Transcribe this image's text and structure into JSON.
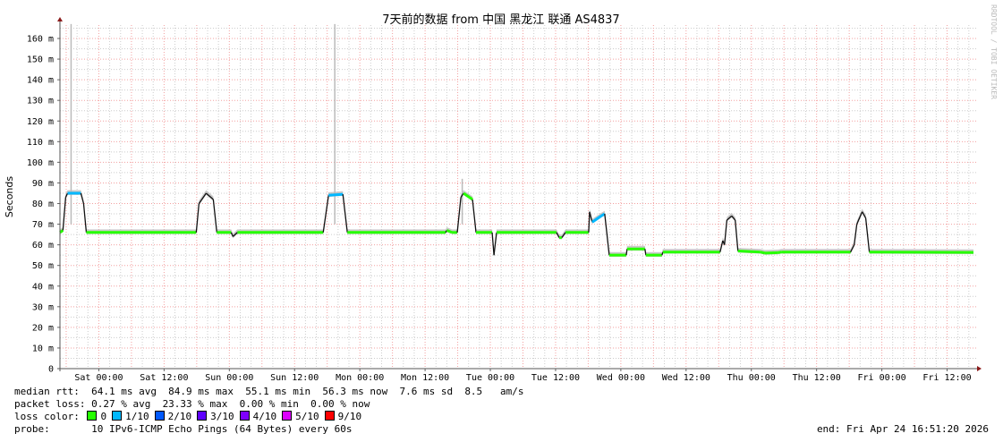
{
  "chart_data": {
    "type": "line",
    "title": "7天前的数据 from 中国 黑龙江 联通 AS4837",
    "ylabel": "Seconds",
    "watermark": "RRDTOOL / TOBI OETIKER",
    "ylim": [
      0,
      167
    ],
    "yticks": [
      {
        "v": 0,
        "label": "0"
      },
      {
        "v": 10,
        "label": "10 m"
      },
      {
        "v": 20,
        "label": "20 m"
      },
      {
        "v": 30,
        "label": "30 m"
      },
      {
        "v": 40,
        "label": "40 m"
      },
      {
        "v": 50,
        "label": "50 m"
      },
      {
        "v": 60,
        "label": "60 m"
      },
      {
        "v": 70,
        "label": "70 m"
      },
      {
        "v": 80,
        "label": "80 m"
      },
      {
        "v": 90,
        "label": "90 m"
      },
      {
        "v": 100,
        "label": "100 m"
      },
      {
        "v": 110,
        "label": "110 m"
      },
      {
        "v": 120,
        "label": "120 m"
      },
      {
        "v": 130,
        "label": "130 m"
      },
      {
        "v": 140,
        "label": "140 m"
      },
      {
        "v": 150,
        "label": "150 m"
      },
      {
        "v": 160,
        "label": "160 m"
      }
    ],
    "xlim": [
      "2026-04-17 16:51",
      "2026-04-24 16:51"
    ],
    "xticks": [
      {
        "t": "2026-04-18 00:00",
        "label": "Sat 00:00"
      },
      {
        "t": "2026-04-18 12:00",
        "label": "Sat 12:00"
      },
      {
        "t": "2026-04-19 00:00",
        "label": "Sun 00:00"
      },
      {
        "t": "2026-04-19 12:00",
        "label": "Sun 12:00"
      },
      {
        "t": "2026-04-20 00:00",
        "label": "Mon 00:00"
      },
      {
        "t": "2026-04-20 12:00",
        "label": "Mon 12:00"
      },
      {
        "t": "2026-04-21 00:00",
        "label": "Tue 00:00"
      },
      {
        "t": "2026-04-21 12:00",
        "label": "Tue 12:00"
      },
      {
        "t": "2026-04-22 00:00",
        "label": "Wed 00:00"
      },
      {
        "t": "2026-04-22 12:00",
        "label": "Wed 12:00"
      },
      {
        "t": "2026-04-23 00:00",
        "label": "Thu 00:00"
      },
      {
        "t": "2026-04-23 12:00",
        "label": "Thu 12:00"
      },
      {
        "t": "2026-04-24 00:00",
        "label": "Fri 00:00"
      },
      {
        "t": "2026-04-24 12:00",
        "label": "Fri 12:00"
      }
    ],
    "grid": true,
    "series_median_ms": [
      [
        "2026-04-17 16:51",
        66,
        0
      ],
      [
        "2026-04-17 17:24",
        67,
        0
      ],
      [
        "2026-04-17 17:54",
        83,
        0
      ],
      [
        "2026-04-17 18:15",
        85,
        1
      ],
      [
        "2026-04-17 20:42",
        85,
        0
      ],
      [
        "2026-04-17 21:12",
        80,
        0
      ],
      [
        "2026-04-17 21:42",
        66,
        0
      ],
      [
        "2026-04-18 17:55",
        66,
        0
      ],
      [
        "2026-04-18 18:25",
        80,
        0
      ],
      [
        "2026-04-18 19:44",
        85,
        1
      ],
      [
        "2026-04-18 21:03",
        82,
        0
      ],
      [
        "2026-04-18 21:42",
        66,
        0
      ],
      [
        "2026-04-19 00:20",
        66,
        0
      ],
      [
        "2026-04-19 00:40",
        64,
        0
      ],
      [
        "2026-04-19 01:29",
        66,
        0
      ],
      [
        "2026-04-19 17:16",
        66,
        0
      ],
      [
        "2026-04-19 18:15",
        84,
        1
      ],
      [
        "2026-04-19 20:53",
        84.5,
        0
      ],
      [
        "2026-04-19 21:42",
        66,
        0
      ],
      [
        "2026-04-20 15:47",
        66,
        0
      ],
      [
        "2026-04-20 16:00",
        67,
        0
      ],
      [
        "2026-04-20 16:56",
        66,
        0
      ],
      [
        "2026-04-20 17:55",
        66,
        0
      ],
      [
        "2026-04-20 18:35",
        83,
        1
      ],
      [
        "2026-04-20 19:04",
        85,
        0
      ],
      [
        "2026-04-20 20:43",
        82,
        0
      ],
      [
        "2026-04-20 21:22",
        66,
        0
      ],
      [
        "2026-04-21 00:20",
        66,
        0
      ],
      [
        "2026-04-21 00:40",
        55,
        0
      ],
      [
        "2026-04-21 01:09",
        66,
        0
      ],
      [
        "2026-04-21 12:10",
        66,
        0
      ],
      [
        "2026-04-21 12:40",
        63.5,
        0
      ],
      [
        "2026-04-21 13:09",
        63.5,
        0
      ],
      [
        "2026-04-21 13:49",
        66,
        0
      ],
      [
        "2026-04-21 18:05",
        66,
        0
      ],
      [
        "2026-04-21 18:15",
        76,
        0
      ],
      [
        "2026-04-21 18:44",
        71,
        1
      ],
      [
        "2026-04-21 20:23",
        74,
        1
      ],
      [
        "2026-04-21 21:02",
        75,
        0
      ],
      [
        "2026-04-21 21:52",
        55,
        0
      ],
      [
        "2026-04-22 01:00",
        55,
        0
      ],
      [
        "2026-04-22 01:09",
        58,
        0
      ],
      [
        "2026-04-22 04:26",
        58,
        0
      ],
      [
        "2026-04-22 04:36",
        55,
        0
      ],
      [
        "2026-04-22 07:34",
        55,
        0
      ],
      [
        "2026-04-22 07:44",
        56.5,
        0
      ],
      [
        "2026-04-22 18:15",
        56.5,
        0
      ],
      [
        "2026-04-22 18:45",
        62,
        0
      ],
      [
        "2026-04-22 19:04",
        60,
        0
      ],
      [
        "2026-04-22 19:30",
        72,
        1
      ],
      [
        "2026-04-22 20:23",
        74,
        0
      ],
      [
        "2026-04-22 21:02",
        72,
        0
      ],
      [
        "2026-04-22 21:32",
        57,
        0
      ],
      [
        "2026-04-23 01:39",
        56.5,
        0
      ],
      [
        "2026-04-23 02:30",
        56,
        0
      ],
      [
        "2026-04-23 04:56",
        56.2,
        0
      ],
      [
        "2026-04-23 05:30",
        56.5,
        0
      ],
      [
        "2026-04-23 18:15",
        56.5,
        0
      ],
      [
        "2026-04-23 18:55",
        60,
        0
      ],
      [
        "2026-04-23 19:24",
        70,
        1
      ],
      [
        "2026-04-23 20:23",
        76,
        1
      ],
      [
        "2026-04-23 21:02",
        73,
        0
      ],
      [
        "2026-04-23 21:42",
        56.5,
        0
      ],
      [
        "2026-04-24 16:51",
        56.3,
        0
      ]
    ],
    "smoke_spikes_ms": [
      [
        "2026-04-17 18:54",
        167
      ],
      [
        "2026-04-19 19:24",
        167
      ],
      [
        "2026-04-20 18:50",
        92
      ]
    ],
    "loss_colors": {
      "0": "#26ff00",
      "1/10": "#00b8ff",
      "2/10": "#0059ff",
      "3/10": "#5e00ff",
      "4/10": "#7e00ff",
      "5/10": "#dd00ff",
      "9/10": "#ff0000"
    }
  },
  "legend": {
    "median_rtt": "median rtt:  64.1 ms avg  84.9 ms max  55.1 ms min  56.3 ms now  7.6 ms sd  8.5   am/s",
    "packet_loss": "packet loss: 0.27 % avg  23.33 % max  0.00 % min  0.00 % now",
    "loss_color_label": "loss color: ",
    "loss_items": [
      {
        "label": "0",
        "color": "#26ff00"
      },
      {
        "label": "1/10",
        "color": "#00b8ff"
      },
      {
        "label": "2/10",
        "color": "#0059ff"
      },
      {
        "label": "3/10",
        "color": "#5e00ff"
      },
      {
        "label": "4/10",
        "color": "#7e00ff"
      },
      {
        "label": "5/10",
        "color": "#dd00ff"
      },
      {
        "label": "9/10",
        "color": "#ff0000"
      }
    ],
    "probe": "probe:       10 IPv6-ICMP Echo Pings (64 Bytes) every 60s",
    "end": "end: Fri Apr 24 16:51:20 2026"
  }
}
